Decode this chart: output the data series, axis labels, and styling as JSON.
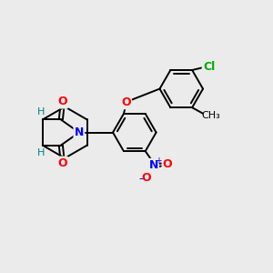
{
  "bg_color": "#ebebeb",
  "bond_color": "#000000",
  "bond_width": 1.4,
  "figsize": [
    3.0,
    3.0
  ],
  "dpi": 100,
  "atom_colors": {
    "O": "#ff0000",
    "N": "#0000ff",
    "Cl": "#00aa00",
    "H": "#008080",
    "C": "#000000"
  }
}
